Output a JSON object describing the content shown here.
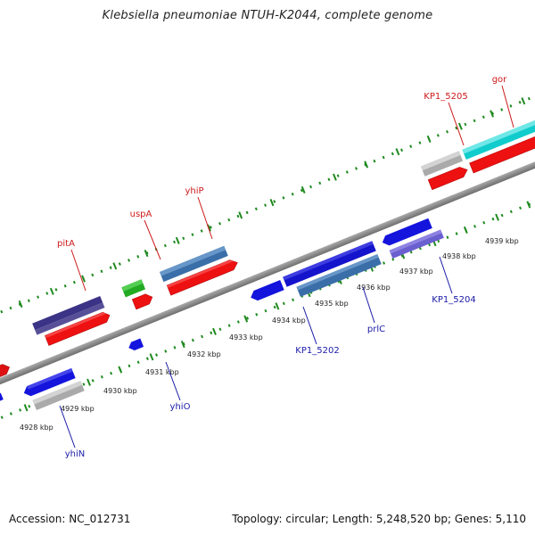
{
  "title": "Klebsiella pneumoniae NTUH-K2044, complete genome",
  "footer": {
    "accession": "Accession: NC_012731",
    "summary": "Topology: circular; Length: 5,248,520 bp; Genes: 5,110"
  },
  "colors": {
    "forward_label": "#cc1a1a",
    "reverse_label": "#1a1aa8",
    "backbone": "#888888",
    "tick": "#1f8a1f"
  },
  "ticks": [
    {
      "label": "4928 kbp"
    },
    {
      "label": "4929 kbp"
    },
    {
      "label": "4930 kbp"
    },
    {
      "label": "4931 kbp"
    },
    {
      "label": "4932 kbp"
    },
    {
      "label": "4933 kbp"
    },
    {
      "label": "4934 kbp"
    },
    {
      "label": "4935 kbp"
    },
    {
      "label": "4936 kbp"
    },
    {
      "label": "4937 kbp"
    },
    {
      "label": "4938 kbp"
    },
    {
      "label": "4939 kbp"
    }
  ],
  "forward_labels": [
    "pitA",
    "uspA",
    "yhiP",
    "KP1_5205",
    "gor"
  ],
  "reverse_labels": [
    "yhiN",
    "yhiO",
    "KP1_5202",
    "prlC",
    "KP1_5204"
  ]
}
